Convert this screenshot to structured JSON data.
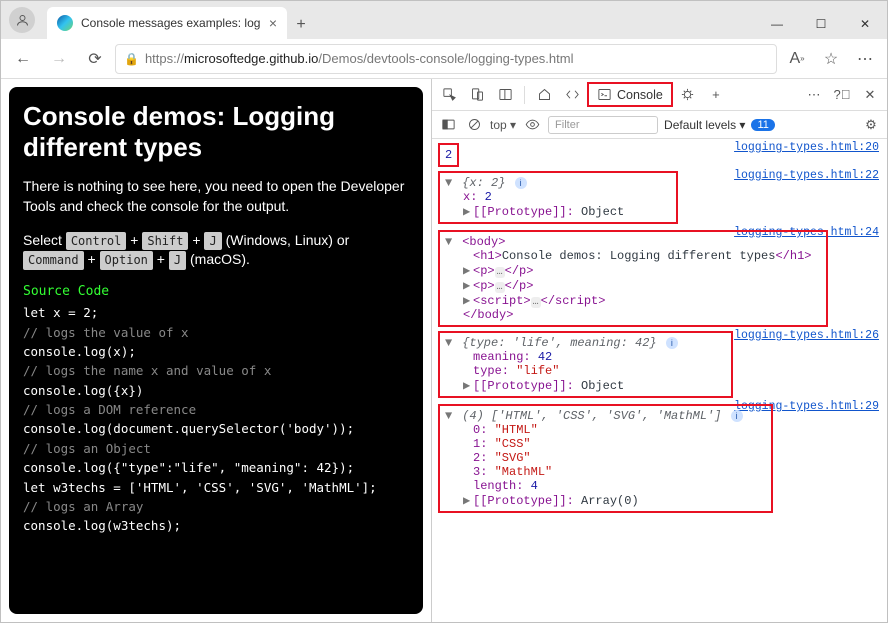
{
  "browser": {
    "tab_title": "Console messages examples: log",
    "url_prefix": "https://",
    "url_host": "microsoftedge.github.io",
    "url_path": "/Demos/devtools-console/logging-types.html"
  },
  "page": {
    "heading": "Console demos: Logging different types",
    "intro": "There is nothing to see here, you need to open the Developer Tools and check the console for the output.",
    "instr_select": "Select ",
    "kbd_ctrl": "Control",
    "kbd_shift": "Shift",
    "kbd_j": "J",
    "instr_winlinux": " (Windows, Linux) or ",
    "kbd_cmd": "Command",
    "kbd_opt": "Option",
    "instr_macos": " (macOS).",
    "plus": " + ",
    "code_title": "Source Code",
    "code_lines": [
      {
        "t": "let x = 2;",
        "c": false
      },
      {
        "t": "// logs the value of x",
        "c": true
      },
      {
        "t": "console.log(x);",
        "c": false
      },
      {
        "t": "// logs the name x and value of x",
        "c": true
      },
      {
        "t": "console.log({x})",
        "c": false
      },
      {
        "t": "// logs a DOM reference",
        "c": true
      },
      {
        "t": "console.log(document.querySelector('body'));",
        "c": false
      },
      {
        "t": "// logs an Object",
        "c": true
      },
      {
        "t": "console.log({\"type\":\"life\", \"meaning\": 42});",
        "c": false
      },
      {
        "t": "let w3techs = ['HTML', 'CSS', 'SVG', 'MathML'];",
        "c": false
      },
      {
        "t": "// logs an Array",
        "c": true
      },
      {
        "t": "console.log(w3techs);",
        "c": false
      }
    ]
  },
  "devtools": {
    "active_tab": "Console",
    "context": "top",
    "filter_placeholder": "Filter",
    "levels": "Default levels",
    "issue_count": "11",
    "links": {
      "l20": "logging-types.html:20",
      "l22": "logging-types.html:22",
      "l24": "logging-types.html:24",
      "l26": "logging-types.html:26",
      "l29": "logging-types.html:29"
    },
    "entry1_value": "2",
    "entry2": {
      "summary": "{x: 2}",
      "line1_key": "x:",
      "line1_val": "2",
      "proto_label": "[[Prototype]]:",
      "proto_val": "Object"
    },
    "entry3": {
      "open": "<body>",
      "h1_open": "<h1>",
      "h1_text": "Console demos: Logging different types",
      "h1_close": "</h1>",
      "p_open": "<p>",
      "p_close": "</p>",
      "script_open": "<script>",
      "script_close": "</script>",
      "close": "</body>"
    },
    "entry4": {
      "summary": "{type: 'life', meaning: 42}",
      "k1": "meaning:",
      "v1": "42",
      "k2": "type:",
      "v2": "\"life\"",
      "proto_label": "[[Prototype]]:",
      "proto_val": "Object"
    },
    "entry5": {
      "summary": "(4) ['HTML', 'CSS', 'SVG', 'MathML']",
      "i0k": "0:",
      "i0v": "\"HTML\"",
      "i1k": "1:",
      "i1v": "\"CSS\"",
      "i2k": "2:",
      "i2v": "\"SVG\"",
      "i3k": "3:",
      "i3v": "\"MathML\"",
      "lenk": "length:",
      "lenv": "4",
      "proto_label": "[[Prototype]]:",
      "proto_val": "Array(0)"
    }
  }
}
